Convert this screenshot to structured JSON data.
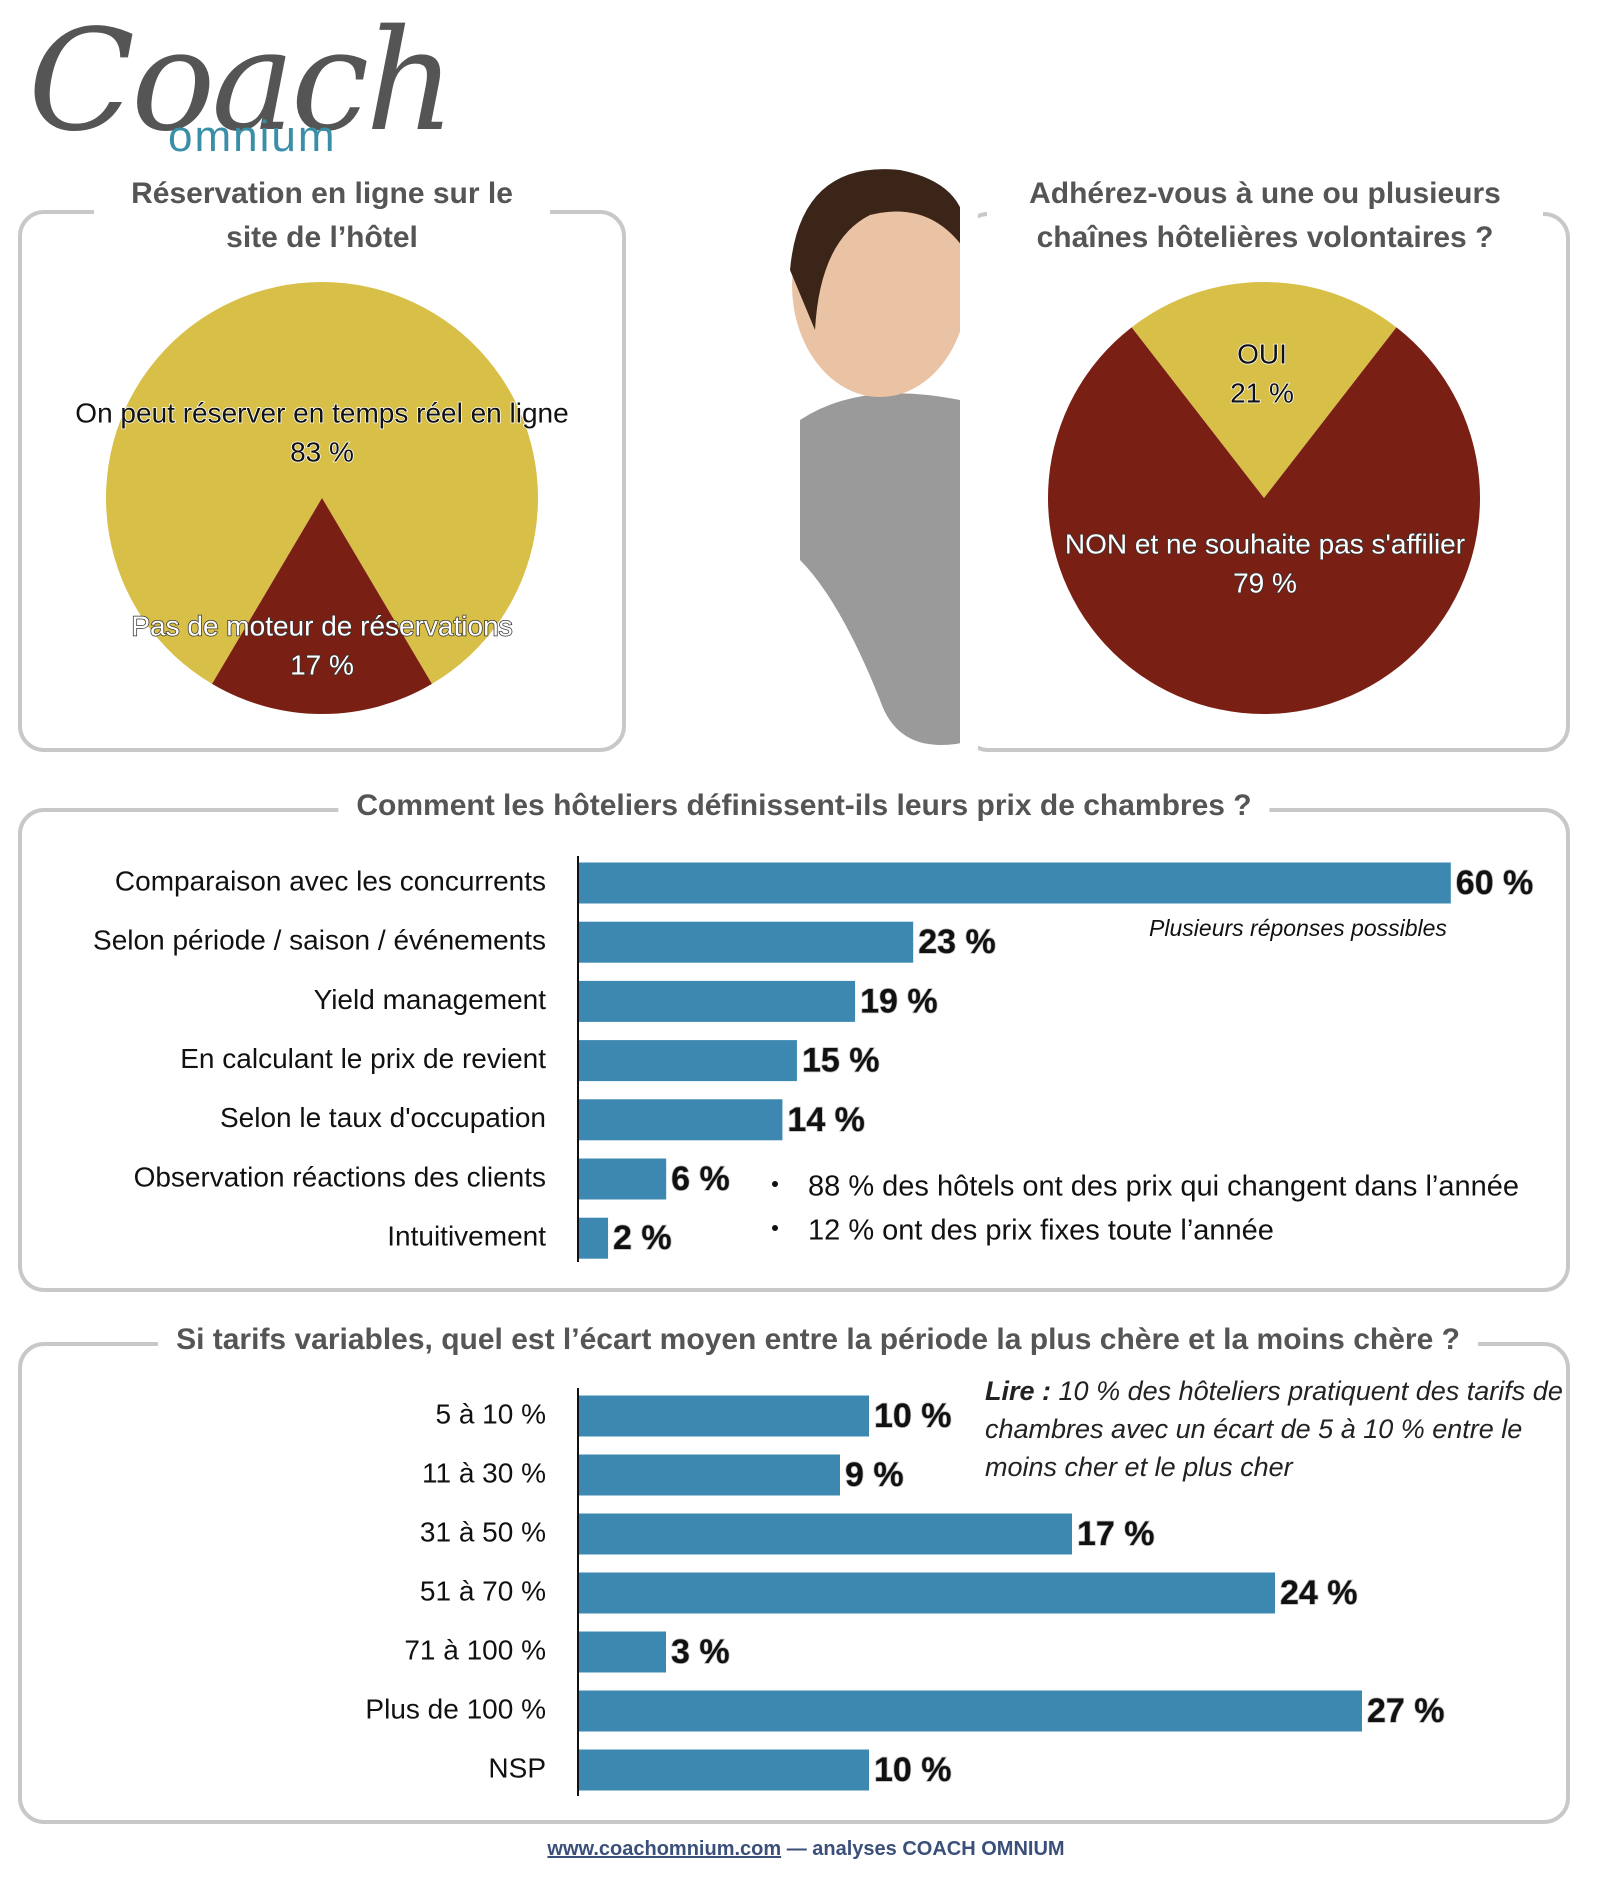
{
  "logo": {
    "name": "Coach",
    "sub": "omnium"
  },
  "chart_data": [
    {
      "type": "pie",
      "title": "Réservation en ligne sur le site de l’hôtel",
      "categories": [
        "On peut réserver en temps réel en ligne",
        "Pas de moteur de réservations"
      ],
      "values": [
        83,
        17
      ],
      "value_labels": [
        "83 %",
        "17 %"
      ],
      "colors": [
        "#d8bf47",
        "#7a1f14"
      ]
    },
    {
      "type": "pie",
      "title": "Adhérez-vous à une ou plusieurs chaînes hôtelières volontaires ?",
      "categories": [
        "OUI",
        "NON et ne souhaite pas s'affilier"
      ],
      "values": [
        21,
        79
      ],
      "value_labels": [
        "21 %",
        "79 %"
      ],
      "colors": [
        "#d8bf47",
        "#7a1f14"
      ]
    },
    {
      "type": "bar",
      "orientation": "horizontal",
      "title": "Comment les hôteliers définissent-ils leurs prix de chambres ?",
      "categories": [
        "Comparaison avec les concurrents",
        "Selon période / saison / événements",
        "Yield management",
        "En calculant le prix de revient",
        "Selon le taux d'occupation",
        "Observation réactions des clients",
        "Intuitivement"
      ],
      "values": [
        60,
        23,
        19,
        15,
        14,
        6,
        2
      ],
      "value_labels": [
        "60 %",
        "23 %",
        "19 %",
        "15 %",
        "14 %",
        "6 %",
        "2 %"
      ],
      "color": "#3d88b0",
      "annotations": [
        "Plusieurs réponses possibles",
        "88 % des hôtels ont des prix qui changent dans l’année",
        "12 % ont des prix fixes toute l’année"
      ]
    },
    {
      "type": "bar",
      "orientation": "horizontal",
      "title": "Si tarifs variables, quel est l’écart moyen entre la période la plus chère et la moins chère ?",
      "categories": [
        "5 à 10 %",
        "11 à 30 %",
        "31 à 50 %",
        "51 à 70 %",
        "71 à 100 %",
        "Plus de 100 %",
        "NSP"
      ],
      "values": [
        10,
        9,
        17,
        24,
        3,
        27,
        10
      ],
      "value_labels": [
        "10 %",
        "9 %",
        "17 %",
        "24 %",
        "3 %",
        "27 %",
        "10 %"
      ],
      "color": "#3d88b0",
      "annotations": [
        "Lire :",
        "10 % des hôteliers pratiquent des tarifs de chambres avec un écart de 5 à 10 % entre le moins cher et le plus cher"
      ]
    }
  ],
  "footer": {
    "link": "www.coachomnium.com",
    "text": " — analyses COACH OMNIUM"
  }
}
